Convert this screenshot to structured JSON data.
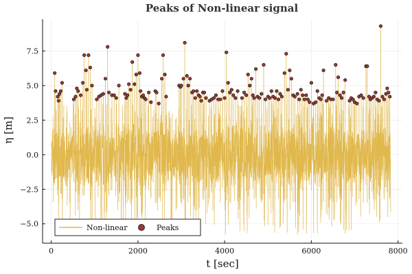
{
  "chart_data": {
    "type": "line",
    "title": "Peaks of Non-linear signal",
    "xlabel": "t [sec]",
    "ylabel": "η [m]",
    "xlim": [
      -200,
      8100
    ],
    "ylim": [
      -6.4,
      9.8
    ],
    "x_ticks": [
      0,
      2000,
      4000,
      6000,
      8000
    ],
    "x_tick_labels": [
      "0",
      "2000",
      "4000",
      "6000",
      "8000"
    ],
    "y_ticks": [
      -5.0,
      -2.5,
      0.0,
      2.5,
      5.0,
      7.5
    ],
    "y_tick_labels": [
      "−5.0",
      "−2.5",
      "0.0",
      "2.5",
      "5.0",
      "7.5"
    ],
    "grid": true,
    "legend_position": "bottom-left",
    "series": [
      {
        "name": "Non-linear",
        "kind": "line",
        "color": "#e0b84d",
        "t_start": 0,
        "t_end": 7830,
        "typical_max": 2.5,
        "typical_min": -2.5,
        "extreme_max": 9.3,
        "extreme_min": -6.1
      },
      {
        "name": "Peaks",
        "kind": "scatter",
        "marker_fill": "#a0372f",
        "marker_edge": "#222222",
        "points": [
          [
            80,
            5.9
          ],
          [
            100,
            4.6
          ],
          [
            150,
            4.2
          ],
          [
            170,
            3.9
          ],
          [
            190,
            4.4
          ],
          [
            220,
            4.6
          ],
          [
            250,
            5.2
          ],
          [
            520,
            4.0
          ],
          [
            560,
            4.2
          ],
          [
            590,
            4.8
          ],
          [
            620,
            4.6
          ],
          [
            680,
            4.3
          ],
          [
            730,
            5.2
          ],
          [
            760,
            7.2
          ],
          [
            800,
            6.1
          ],
          [
            820,
            4.7
          ],
          [
            860,
            7.2
          ],
          [
            900,
            6.3
          ],
          [
            940,
            5.0
          ],
          [
            1050,
            4.0
          ],
          [
            1100,
            4.2
          ],
          [
            1150,
            4.3
          ],
          [
            1200,
            4.4
          ],
          [
            1250,
            5.5
          ],
          [
            1300,
            7.8
          ],
          [
            1330,
            4.5
          ],
          [
            1400,
            4.3
          ],
          [
            1450,
            4.3
          ],
          [
            1500,
            4.1
          ],
          [
            1560,
            5.0
          ],
          [
            1700,
            4.4
          ],
          [
            1730,
            4.1
          ],
          [
            1760,
            4.3
          ],
          [
            1790,
            5.1
          ],
          [
            1830,
            4.7
          ],
          [
            1870,
            6.7
          ],
          [
            1920,
            5.1
          ],
          [
            1960,
            5.8
          ],
          [
            2000,
            7.2
          ],
          [
            2040,
            5.9
          ],
          [
            2060,
            4.6
          ],
          [
            2090,
            4.2
          ],
          [
            2120,
            4.3
          ],
          [
            2150,
            4.1
          ],
          [
            2180,
            4.0
          ],
          [
            2250,
            4.5
          ],
          [
            2300,
            3.8
          ],
          [
            2400,
            4.6
          ],
          [
            2430,
            4.5
          ],
          [
            2480,
            3.7
          ],
          [
            2550,
            5.5
          ],
          [
            2580,
            7.2
          ],
          [
            2620,
            5.8
          ],
          [
            2650,
            4.2
          ],
          [
            2950,
            5.0
          ],
          [
            2980,
            4.9
          ],
          [
            3000,
            5.0
          ],
          [
            3050,
            5.5
          ],
          [
            3080,
            8.1
          ],
          [
            3130,
            5.7
          ],
          [
            3160,
            5.0
          ],
          [
            3200,
            5.5
          ],
          [
            3250,
            4.5
          ],
          [
            3280,
            4.6
          ],
          [
            3320,
            4.1
          ],
          [
            3360,
            4.6
          ],
          [
            3400,
            4.3
          ],
          [
            3430,
            4.2
          ],
          [
            3460,
            3.9
          ],
          [
            3500,
            4.5
          ],
          [
            3530,
            4.5
          ],
          [
            3570,
            4.1
          ],
          [
            3650,
            3.9
          ],
          [
            3700,
            4.0
          ],
          [
            3750,
            4.1
          ],
          [
            3800,
            4.3
          ],
          [
            3850,
            4.0
          ],
          [
            3900,
            4.0
          ],
          [
            3950,
            4.6
          ],
          [
            4000,
            4.1
          ],
          [
            4040,
            7.4
          ],
          [
            4080,
            5.2
          ],
          [
            4120,
            4.5
          ],
          [
            4160,
            4.7
          ],
          [
            4200,
            4.3
          ],
          [
            4250,
            4.1
          ],
          [
            4300,
            4.6
          ],
          [
            4400,
            4.1
          ],
          [
            4450,
            4.5
          ],
          [
            4500,
            4.3
          ],
          [
            4540,
            5.8
          ],
          [
            4580,
            5.0
          ],
          [
            4620,
            5.5
          ],
          [
            4650,
            4.3
          ],
          [
            4680,
            4.1
          ],
          [
            4720,
            6.2
          ],
          [
            4760,
            4.2
          ],
          [
            4800,
            4.1
          ],
          [
            4850,
            4.4
          ],
          [
            4900,
            6.5
          ],
          [
            4940,
            4.0
          ],
          [
            5000,
            4.2
          ],
          [
            5040,
            4.1
          ],
          [
            5080,
            4.6
          ],
          [
            5120,
            4.2
          ],
          [
            5160,
            4.1
          ],
          [
            5200,
            4.6
          ],
          [
            5240,
            4.0
          ],
          [
            5280,
            4.4
          ],
          [
            5320,
            4.2
          ],
          [
            5380,
            5.9
          ],
          [
            5420,
            7.3
          ],
          [
            5460,
            4.7
          ],
          [
            5500,
            6.1
          ],
          [
            5540,
            5.5
          ],
          [
            5580,
            4.3
          ],
          [
            5620,
            4.2
          ],
          [
            5680,
            4.4
          ],
          [
            5720,
            4.0
          ],
          [
            5760,
            4.7
          ],
          [
            5800,
            4.3
          ],
          [
            5840,
            4.0
          ],
          [
            5880,
            4.3
          ],
          [
            5920,
            4.0
          ],
          [
            5960,
            3.8
          ],
          [
            6000,
            5.2
          ],
          [
            6050,
            3.7
          ],
          [
            6100,
            3.8
          ],
          [
            6140,
            4.6
          ],
          [
            6180,
            4.1
          ],
          [
            6220,
            4.0
          ],
          [
            6250,
            4.3
          ],
          [
            6280,
            6.1
          ],
          [
            6350,
            3.9
          ],
          [
            6400,
            4.1
          ],
          [
            6450,
            4.0
          ],
          [
            6500,
            4.0
          ],
          [
            6560,
            6.5
          ],
          [
            6590,
            4.5
          ],
          [
            6620,
            5.6
          ],
          [
            6660,
            4.3
          ],
          [
            6700,
            4.1
          ],
          [
            6740,
            4.5
          ],
          [
            6780,
            5.4
          ],
          [
            6880,
            3.9
          ],
          [
            6920,
            4.1
          ],
          [
            6960,
            4.0
          ],
          [
            7000,
            3.8
          ],
          [
            7050,
            3.7
          ],
          [
            7100,
            4.2
          ],
          [
            7150,
            4.3
          ],
          [
            7200,
            4.1
          ],
          [
            7260,
            6.4
          ],
          [
            7290,
            6.4
          ],
          [
            7330,
            4.2
          ],
          [
            7360,
            4.0
          ],
          [
            7400,
            4.1
          ],
          [
            7440,
            4.2
          ],
          [
            7480,
            4.5
          ],
          [
            7520,
            4.0
          ],
          [
            7560,
            3.9
          ],
          [
            7600,
            9.3
          ],
          [
            7640,
            4.2
          ],
          [
            7680,
            4.0
          ],
          [
            7720,
            4.4
          ],
          [
            7750,
            4.8
          ],
          [
            7780,
            4.5
          ],
          [
            7810,
            4.2
          ]
        ]
      }
    ]
  }
}
